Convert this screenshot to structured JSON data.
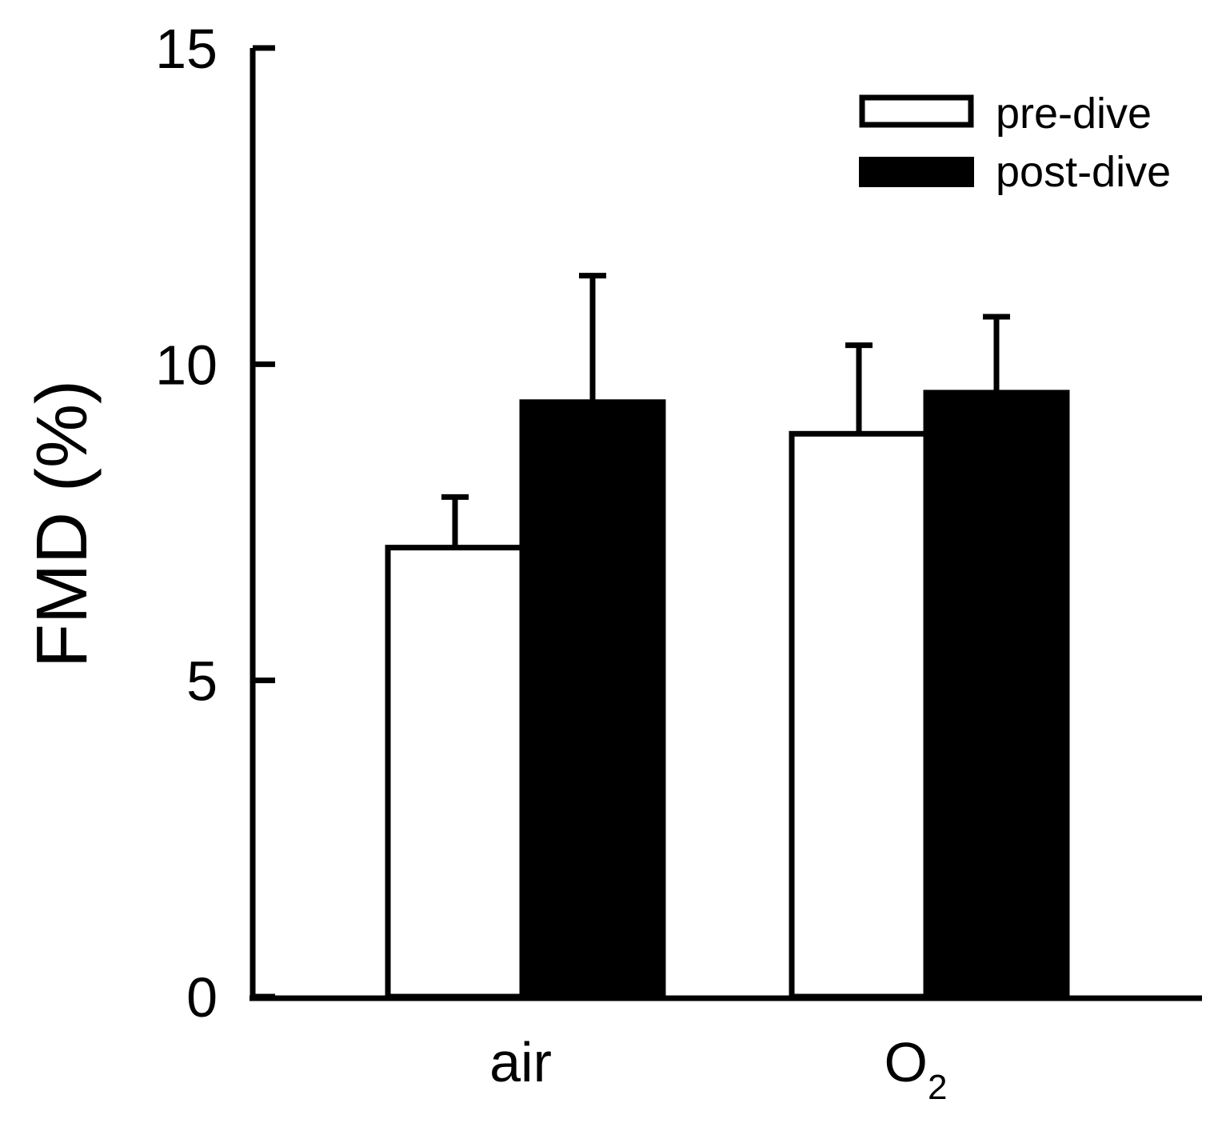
{
  "chart_data": {
    "type": "bar",
    "title": "",
    "xlabel": "",
    "ylabel": "FMD (%)",
    "ylim": [
      0,
      15
    ],
    "yticks": [
      0,
      5,
      10,
      15
    ],
    "categories": [
      {
        "name": "air",
        "text": "air",
        "subscript": ""
      },
      {
        "name": "O2",
        "text": "O",
        "subscript": "2"
      }
    ],
    "series": [
      {
        "name": "pre-dive",
        "fill": "#ffffff",
        "values": [
          7.1,
          8.9
        ],
        "errors": [
          0.8,
          1.4
        ]
      },
      {
        "name": "post-dive",
        "fill": "#000000",
        "values": [
          9.4,
          9.55
        ],
        "errors": [
          2.0,
          1.2
        ]
      }
    ],
    "legend": {
      "position": "top-right"
    },
    "grid": false,
    "colors": {
      "axis": "#000000",
      "bar_edge": "#000000",
      "background": "#ffffff"
    }
  }
}
